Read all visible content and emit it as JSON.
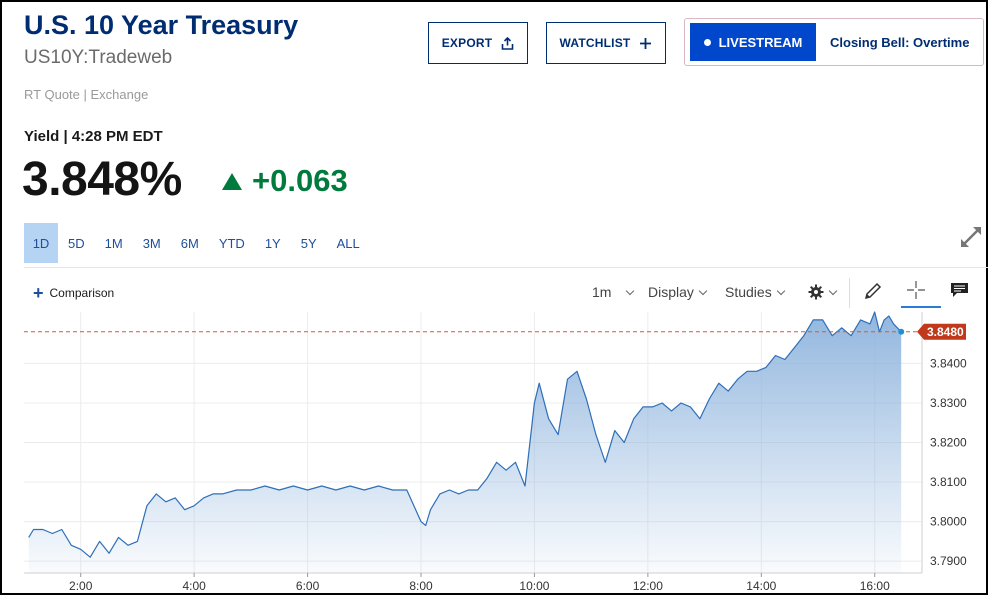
{
  "header": {
    "title": "U.S. 10 Year Treasury",
    "subtitle": "US10Y:Tradeweb",
    "quote_source": "RT Quote | Exchange"
  },
  "actions": {
    "export_label": "EXPORT",
    "watchlist_label": "WATCHLIST",
    "livestream_label": "LIVESTREAM",
    "live_show": "Closing Bell: Overtime"
  },
  "quote": {
    "yield_label": "Yield | 4:28 PM EDT",
    "price": "3.848%",
    "change": "+0.063",
    "change_color": "#007a3d"
  },
  "ranges": [
    "1D",
    "5D",
    "1M",
    "3M",
    "6M",
    "YTD",
    "1Y",
    "5Y",
    "ALL"
  ],
  "active_range": "1D",
  "toolbar": {
    "comparison_label": "Comparison",
    "interval_label": "1m",
    "display_label": "Display",
    "studies_label": "Studies",
    "icons": [
      "gear-icon",
      "pencil-icon",
      "crosshair-icon",
      "comment-icon"
    ]
  },
  "chart_data": {
    "type": "area",
    "series": [
      {
        "x": [
          "01:05",
          "01:10",
          "01:20",
          "01:30",
          "01:40",
          "01:50",
          "02:00",
          "02:10",
          "02:20",
          "02:30",
          "02:40",
          "02:50",
          "03:00",
          "03:10",
          "03:20",
          "03:30",
          "03:40",
          "03:50",
          "04:00",
          "04:10",
          "04:20",
          "04:30",
          "04:45",
          "05:00",
          "05:15",
          "05:30",
          "05:45",
          "06:00",
          "06:15",
          "06:30",
          "06:45",
          "07:00",
          "07:15",
          "07:30",
          "07:45",
          "08:00",
          "08:05",
          "08:10",
          "08:20",
          "08:30",
          "08:40",
          "08:50",
          "09:00",
          "09:10",
          "09:20",
          "09:30",
          "09:40",
          "09:50",
          "10:00",
          "10:05",
          "10:15",
          "10:25",
          "10:35",
          "10:45",
          "10:55",
          "11:05",
          "11:15",
          "11:25",
          "11:35",
          "11:45",
          "11:55",
          "12:05",
          "12:15",
          "12:25",
          "12:35",
          "12:45",
          "12:55",
          "13:05",
          "13:15",
          "13:25",
          "13:35",
          "13:45",
          "13:55",
          "14:05",
          "14:15",
          "14:25",
          "14:35",
          "14:45",
          "14:55",
          "15:05",
          "15:15",
          "15:25",
          "15:35",
          "15:45",
          "15:55",
          "16:00",
          "16:05",
          "16:10",
          "16:15",
          "16:20",
          "16:28"
        ],
        "values": [
          3.796,
          3.798,
          3.798,
          3.797,
          3.798,
          3.794,
          3.793,
          3.791,
          3.795,
          3.792,
          3.796,
          3.794,
          3.795,
          3.804,
          3.807,
          3.805,
          3.806,
          3.803,
          3.804,
          3.806,
          3.807,
          3.807,
          3.808,
          3.808,
          3.809,
          3.808,
          3.809,
          3.808,
          3.809,
          3.808,
          3.809,
          3.808,
          3.809,
          3.808,
          3.808,
          3.8,
          3.799,
          3.803,
          3.807,
          3.808,
          3.807,
          3.808,
          3.808,
          3.811,
          3.815,
          3.813,
          3.815,
          3.809,
          3.83,
          3.835,
          3.826,
          3.822,
          3.836,
          3.838,
          3.831,
          3.822,
          3.815,
          3.823,
          3.82,
          3.826,
          3.829,
          3.829,
          3.83,
          3.828,
          3.83,
          3.829,
          3.826,
          3.831,
          3.835,
          3.833,
          3.836,
          3.838,
          3.838,
          3.839,
          3.842,
          3.841,
          3.844,
          3.847,
          3.851,
          3.851,
          3.847,
          3.849,
          3.847,
          3.851,
          3.85,
          3.853,
          3.848,
          3.851,
          3.852,
          3.85,
          3.848
        ]
      }
    ],
    "reference_value": 3.848,
    "reference_label": "3.8480",
    "y_ticks": [
      3.79,
      3.8,
      3.81,
      3.82,
      3.83,
      3.84
    ],
    "y_tick_labels": [
      "3.7900",
      "3.8000",
      "3.8100",
      "3.8200",
      "3.8300",
      "3.8400"
    ],
    "x_ticks": [
      "02:00",
      "04:00",
      "06:00",
      "08:00",
      "10:00",
      "12:00",
      "14:00",
      "16:00"
    ],
    "x_tick_labels": [
      "2:00",
      "4:00",
      "6:00",
      "8:00",
      "10:00",
      "12:00",
      "14:00",
      "16:00"
    ],
    "ylim": [
      3.787,
      3.853
    ],
    "xlim": [
      "01:00",
      "16:50"
    ],
    "line_color": "#2e6fb7",
    "fill_color": "#8db3dd",
    "reference_color": "#d9582b",
    "grid": true
  }
}
